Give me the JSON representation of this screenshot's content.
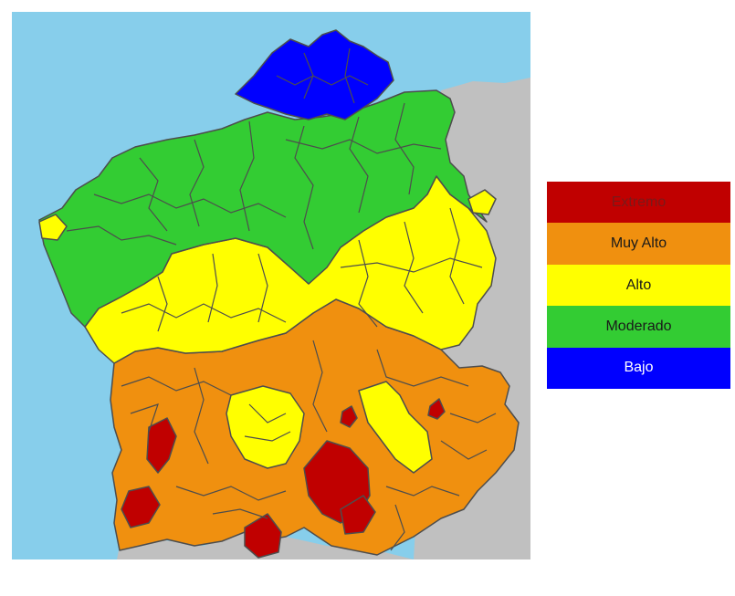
{
  "map": {
    "colors": {
      "sea": "#87ceeb",
      "land": "#c0c0c0",
      "border": "#4d4d4d"
    }
  },
  "legend": {
    "items": [
      {
        "label": "Extremo",
        "color": "#c00000",
        "text_color": "#7a1a1a"
      },
      {
        "label": "Muy Alto",
        "color": "#f0900f",
        "text_color": "#1a1a1a"
      },
      {
        "label": "Alto",
        "color": "#ffff00",
        "text_color": "#1a1a1a"
      },
      {
        "label": "Moderado",
        "color": "#33cc33",
        "text_color": "#1a1a1a"
      },
      {
        "label": "Bajo",
        "color": "#0000ff",
        "text_color": "#ffffff"
      }
    ]
  }
}
